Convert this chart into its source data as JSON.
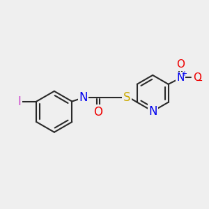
{
  "bg_color": "#efefef",
  "bond_color": "#2a2a2a",
  "bond_width": 1.5,
  "atoms": {
    "I": {
      "color": "#cc44cc",
      "fontsize": 12
    },
    "H": {
      "color": "#888888",
      "fontsize": 10
    },
    "N": {
      "color": "#0000ee",
      "fontsize": 12
    },
    "O": {
      "color": "#ee0000",
      "fontsize": 12
    },
    "S": {
      "color": "#ccaa00",
      "fontsize": 12
    },
    "C": {
      "color": "#2a2a2a",
      "fontsize": 11
    }
  },
  "figsize": [
    3.0,
    3.0
  ],
  "dpi": 100
}
